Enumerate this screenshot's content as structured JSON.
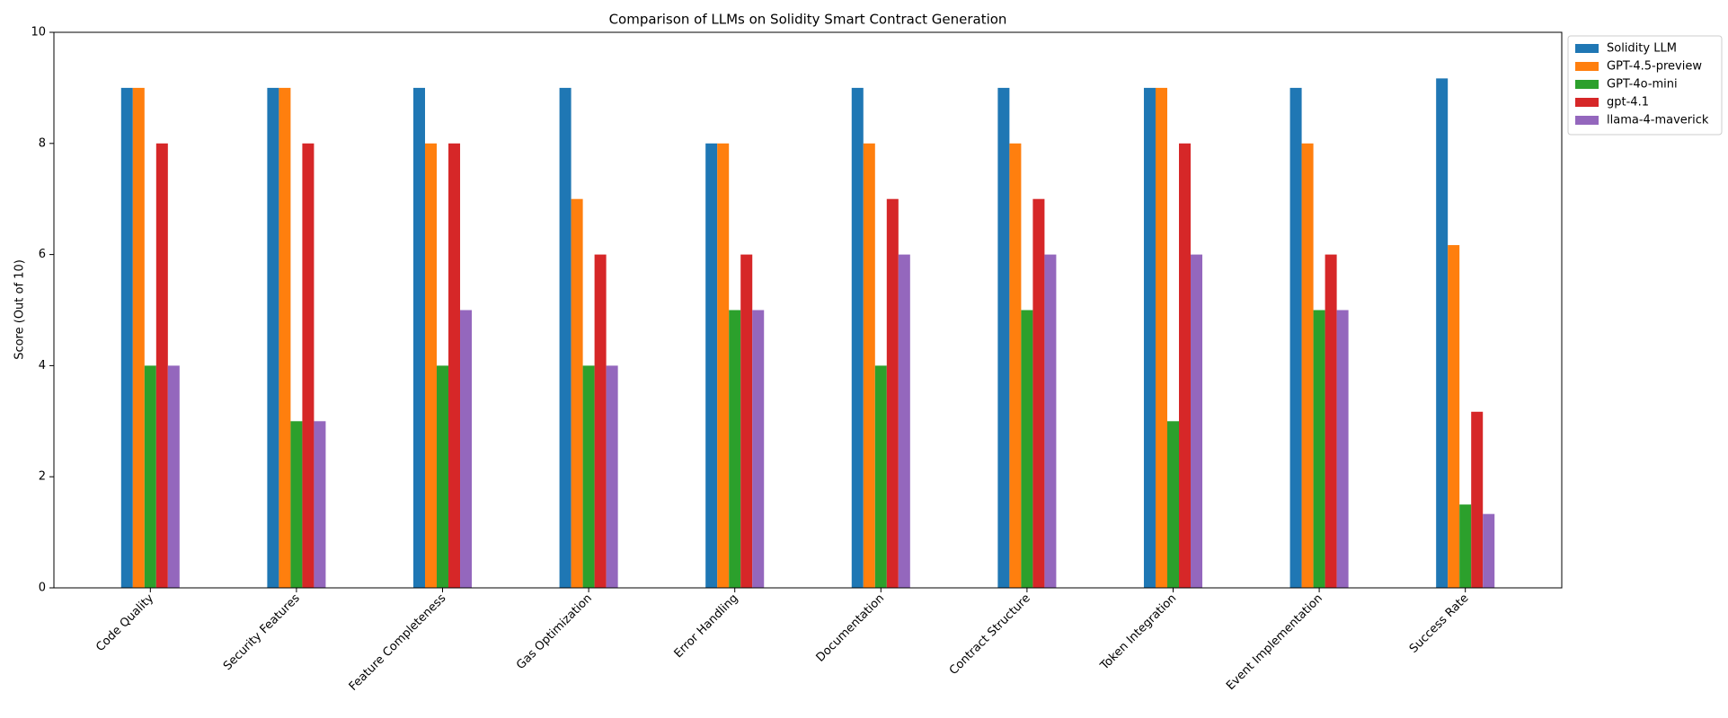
{
  "chart_data": {
    "type": "bar",
    "title": "Comparison of LLMs on Solidity Smart Contract Generation",
    "ylabel": "Score (Out of 10)",
    "categories": [
      "Code Quality",
      "Security Features",
      "Feature Completeness",
      "Gas Optimization",
      "Error Handling",
      "Documentation",
      "Contract Structure",
      "Token Integration",
      "Event Implementation",
      "Success Rate"
    ],
    "series": [
      {
        "name": "Solidity LLM",
        "color": "#1f77b4",
        "values": [
          9,
          9,
          9,
          9,
          8,
          9,
          9,
          9,
          9,
          9.17
        ]
      },
      {
        "name": "GPT-4.5-preview",
        "color": "#ff7f0e",
        "values": [
          9,
          9,
          8,
          7,
          8,
          8,
          8,
          9,
          8,
          6.17
        ]
      },
      {
        "name": "GPT-4o-mini",
        "color": "#2ca02c",
        "values": [
          4,
          3,
          4,
          4,
          5,
          4,
          5,
          3,
          5,
          1.5
        ]
      },
      {
        "name": "gpt-4.1",
        "color": "#d62728",
        "values": [
          8,
          8,
          8,
          6,
          6,
          7,
          7,
          8,
          6,
          3.17
        ]
      },
      {
        "name": "llama-4-maverick",
        "color": "#9467bd",
        "values": [
          4,
          3,
          5,
          4,
          5,
          6,
          6,
          6,
          5,
          1.33
        ]
      }
    ],
    "ylim": [
      0,
      10
    ],
    "yticks": [
      0,
      2,
      4,
      6,
      8,
      10
    ],
    "grid": false,
    "legend": "outside upper right"
  }
}
